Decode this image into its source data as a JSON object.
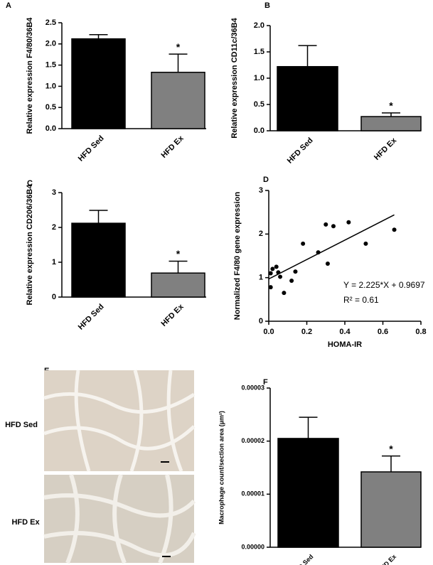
{
  "chart_data": [
    {
      "type": "bar",
      "panel": "A",
      "y_label": "Relative expression F4/80/36B4",
      "categories": [
        "HFD Sed",
        "HFD Ex"
      ],
      "values": [
        2.12,
        1.33
      ],
      "errors": [
        0.1,
        0.43
      ],
      "colors": [
        "#000000",
        "#808080"
      ],
      "labels": [
        null,
        "*"
      ],
      "ylim": [
        0,
        2.5
      ],
      "yticks": [
        {
          "value": 0,
          "label": "0.0"
        },
        0.5,
        {
          "value": 1,
          "label": "1.0"
        },
        1.5,
        {
          "value": 2,
          "label": "2.0"
        },
        2.5
      ]
    },
    {
      "type": "bar",
      "panel": "B",
      "y_label": "Relative expression CD11c/36B4",
      "categories": [
        "HFD Sed",
        "HFD Ex"
      ],
      "values": [
        1.22,
        0.27
      ],
      "errors": [
        0.4,
        0.07
      ],
      "colors": [
        "#000000",
        "#808080"
      ],
      "labels": [
        null,
        "*"
      ],
      "ylim": [
        0,
        2
      ],
      "yticks": [
        {
          "value": 0,
          "label": "0.0"
        },
        0.5,
        {
          "value": 1,
          "label": "1.0"
        },
        1.5,
        {
          "value": 2,
          "label": "2.0"
        }
      ]
    },
    {
      "type": "bar",
      "panel": "C",
      "y_label": "Relative expression CD206/36B4",
      "categories": [
        "HFD Sed",
        "HFD Ex"
      ],
      "values": [
        2.12,
        0.69
      ],
      "errors": [
        0.37,
        0.34
      ],
      "colors": [
        "#000000",
        "#808080"
      ],
      "labels": [
        null,
        "*"
      ],
      "ylim": [
        0,
        3
      ],
      "yticks": [
        0,
        1,
        2,
        3
      ]
    },
    {
      "type": "scatter",
      "panel": "D",
      "y_label": "Normalized F4/80 gene expression",
      "x_label": "HOMA-IR",
      "x": [
        0.01,
        0.01,
        0.02,
        0.04,
        0.05,
        0.06,
        0.08,
        0.12,
        0.14,
        0.18,
        0.26,
        0.3,
        0.31,
        0.34,
        0.42,
        0.51,
        0.66
      ],
      "y": [
        0.78,
        1.1,
        1.2,
        1.25,
        1.12,
        1.02,
        0.65,
        0.93,
        1.14,
        1.78,
        1.58,
        2.22,
        1.32,
        2.18,
        2.27,
        1.78,
        2.1
      ],
      "color": "#000000",
      "fit_line": {
        "x": [
          0,
          0.66
        ],
        "y": [
          0.97,
          2.44
        ]
      },
      "annotations": [
        "Y = 2.225*X + 0.9697",
        "R² = 0.61"
      ],
      "xlim": [
        0,
        0.8
      ],
      "xticks": [
        {
          "value": 0,
          "label": "0.0"
        },
        0.2,
        0.4,
        0.6,
        0.8
      ],
      "ylim": [
        0,
        3
      ],
      "yticks": [
        0,
        1,
        2,
        3
      ]
    },
    {
      "type": "bar",
      "panel": "F",
      "y_label": "Macrophage count/section area (µm²)",
      "categories": [
        "HFD Sed",
        "HFD Ex"
      ],
      "values": [
        2.05e-05,
        1.42e-05
      ],
      "errors": [
        4e-06,
        3e-06
      ],
      "colors": [
        "#000000",
        "#808080"
      ],
      "labels": [
        null,
        "*"
      ],
      "ylim": [
        0,
        3e-05
      ],
      "yticks": [
        {
          "value": 0,
          "label": "0.00000"
        },
        {
          "value": 1e-05,
          "label": "0.00001"
        },
        {
          "value": 2e-05,
          "label": "0.00002"
        },
        {
          "value": 3e-05,
          "label": "0.00003"
        }
      ]
    }
  ],
  "panel_e": {
    "panel": "E",
    "rows": [
      "HFD Sed",
      "HFD Ex"
    ]
  }
}
